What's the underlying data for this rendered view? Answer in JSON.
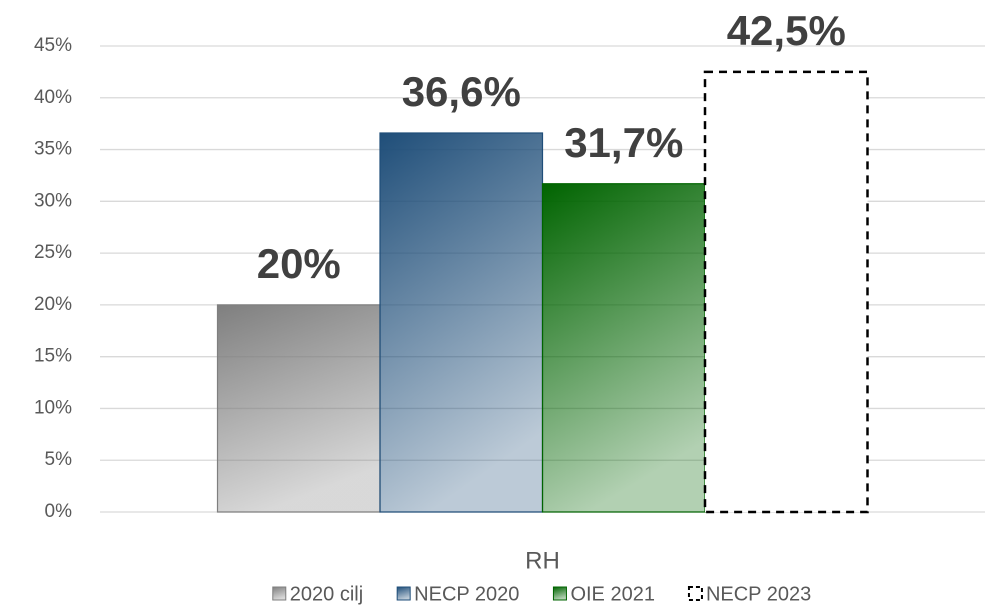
{
  "chart_data": {
    "type": "bar",
    "categories": [
      "RH"
    ],
    "series": [
      {
        "name": "2020 cilj",
        "color": "#7f7f7f",
        "values": [
          20
        ],
        "value_labels": [
          "20%"
        ]
      },
      {
        "name": "NECP 2020",
        "color": "#1f4e79",
        "values": [
          36.6
        ],
        "value_labels": [
          "36,6%"
        ]
      },
      {
        "name": "OIE 2021",
        "color": "#006400",
        "values": [
          31.7
        ],
        "value_labels": [
          "31,7%"
        ]
      },
      {
        "name": "NECP 2023",
        "color": "#000000",
        "style": "dashed",
        "values": [
          42.5
        ],
        "value_labels": [
          "42,5%"
        ]
      }
    ],
    "ylim": [
      0,
      45
    ],
    "yticks": [
      {
        "value": 0,
        "label": "0%"
      },
      {
        "value": 5,
        "label": "5%"
      },
      {
        "value": 10,
        "label": "10%"
      },
      {
        "value": 15,
        "label": "15%"
      },
      {
        "value": 20,
        "label": "20%"
      },
      {
        "value": 25,
        "label": "25%"
      },
      {
        "value": 30,
        "label": "30%"
      },
      {
        "value": 35,
        "label": "35%"
      },
      {
        "value": 40,
        "label": "40%"
      },
      {
        "value": 45,
        "label": "45%"
      }
    ],
    "grid": true,
    "legend": "bottom"
  }
}
